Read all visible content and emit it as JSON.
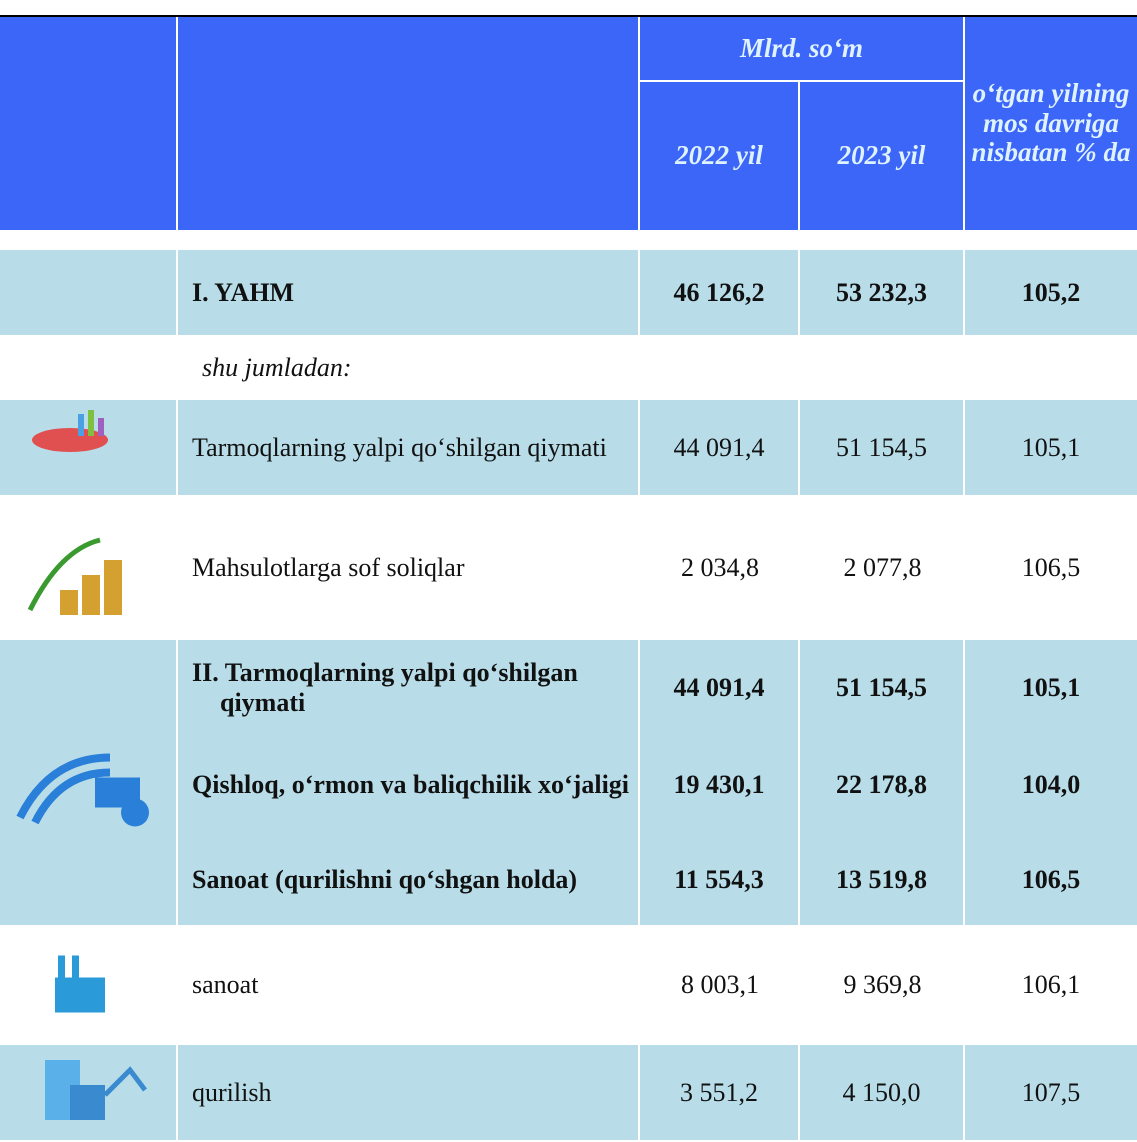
{
  "header": {
    "unit": "Mlrd. so‘m",
    "year1": "2022 yil",
    "year2": "2023 yil",
    "pct": "o‘tgan yilning mos davriga nisbatan % da"
  },
  "table": {
    "rows": [
      {
        "label": "I. YAHM",
        "v1": "46 126,2",
        "v2": "53 232,3",
        "pct": "105,2"
      },
      {
        "label": "shu jumladan:"
      },
      {
        "label": "Tarmoqlarning yalpi qo‘shilgan qiymati",
        "v1": "44 091,4",
        "v2": "51 154,5",
        "pct": "105,1"
      },
      {
        "label": "Mahsulotlarga sof soliqlar",
        "v1": "2 034,8",
        "v2": "2 077,8",
        "pct": "106,5"
      },
      {
        "label": "II. Tarmoqlarning yalpi qo‘shilgan qiymati",
        "v1": "44 091,4",
        "v2": "51 154,5",
        "pct": "105,1"
      },
      {
        "label": "Qishloq, o‘rmon va baliqchilik xo‘jaligi",
        "v1": "19 430,1",
        "v2": "22 178,8",
        "pct": "104,0"
      },
      {
        "label": "Sanoat (qurilishni qo‘shgan holda)",
        "v1": "11 554,3",
        "v2": "13 519,8",
        "pct": "106,5"
      },
      {
        "label": "sanoat",
        "v1": "8 003,1",
        "v2": "9 369,8",
        "pct": "106,1"
      },
      {
        "label": "qurilish",
        "v1": "3 551,2",
        "v2": "4 150,0",
        "pct": "107,5"
      }
    ]
  }
}
